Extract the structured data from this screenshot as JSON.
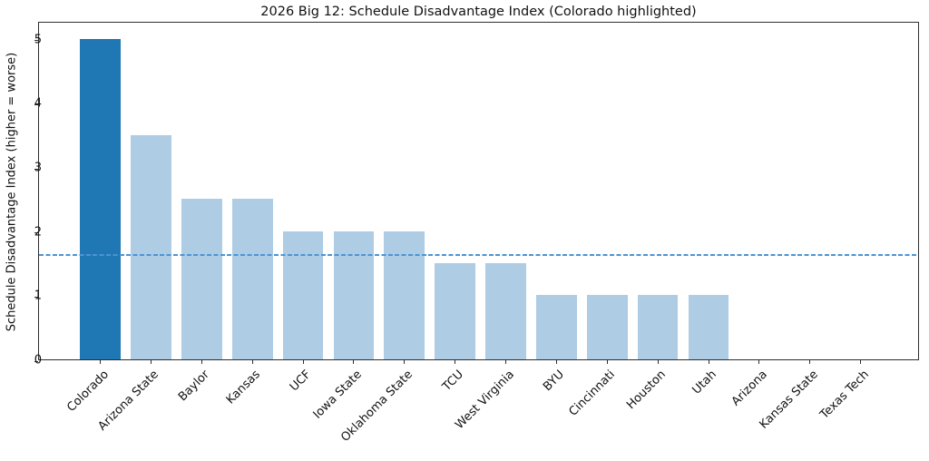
{
  "chart_data": {
    "type": "bar",
    "title": "2026 Big 12: Schedule Disadvantage Index (Colorado highlighted)",
    "ylabel": "Schedule Disadvantage Index (higher = worse)",
    "xlabel": "",
    "categories": [
      "Colorado",
      "Arizona State",
      "Baylor",
      "Kansas",
      "UCF",
      "Iowa State",
      "Oklahoma State",
      "TCU",
      "West Virginia",
      "BYU",
      "Cincinnati",
      "Houston",
      "Utah",
      "Arizona",
      "Kansas State",
      "Texas Tech"
    ],
    "values": [
      5.0,
      3.5,
      2.5,
      2.5,
      2.0,
      2.0,
      2.0,
      1.5,
      1.5,
      1.0,
      1.0,
      1.0,
      1.0,
      0.0,
      0.0,
      0.0
    ],
    "highlighted_category": "Colorado",
    "reference_line": 1.66,
    "yticks": [
      0,
      1,
      2,
      3,
      4,
      5
    ],
    "ylim": [
      0,
      5.28
    ],
    "grid": false,
    "legend": null,
    "colors": {
      "highlight_bar": "#1f77b4",
      "default_bar": "#aecce3",
      "reference_line": "#4d94d4"
    }
  }
}
